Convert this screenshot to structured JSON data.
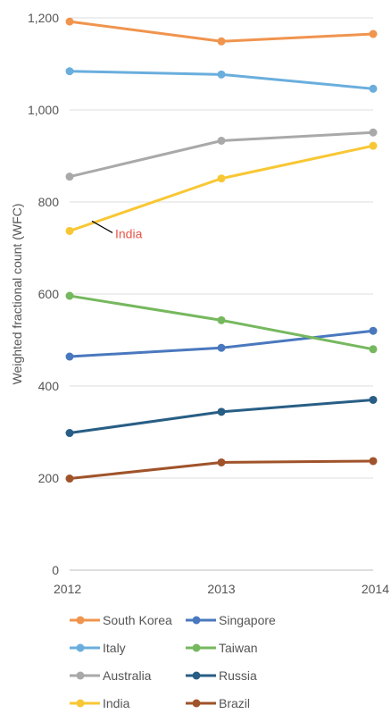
{
  "chart_data": {
    "type": "line",
    "title": "",
    "xlabel": "",
    "ylabel": "Weighted fractional count (WFC)",
    "x": [
      "2012",
      "2013",
      "2014"
    ],
    "ylim": [
      0,
      1200
    ],
    "yticks": [
      "0",
      "200",
      "400",
      "600",
      "800",
      "1,000",
      "1,200"
    ],
    "yticks_values": [
      0,
      200,
      400,
      600,
      800,
      1000,
      1200
    ],
    "grid": true,
    "legend_placement": "bottom",
    "series": [
      {
        "name": "South Korea",
        "color": "#F0944E",
        "values": [
          1192,
          1149,
          1165
        ]
      },
      {
        "name": "Italy",
        "color": "#6AAEDD",
        "values": [
          1084,
          1077,
          1046
        ]
      },
      {
        "name": "Australia",
        "color": "#A9A9A9",
        "values": [
          855,
          933,
          951
        ]
      },
      {
        "name": "India",
        "color": "#F8C734",
        "values": [
          737,
          851,
          922
        ]
      },
      {
        "name": "Singapore",
        "color": "#4A78BE",
        "values": [
          464,
          483,
          520
        ]
      },
      {
        "name": "Taiwan",
        "color": "#76B85E",
        "values": [
          596,
          543,
          480
        ]
      },
      {
        "name": "Russia",
        "color": "#285E85",
        "values": [
          298,
          344,
          370
        ]
      },
      {
        "name": "Brazil",
        "color": "#A0532A",
        "values": [
          199,
          234,
          237
        ]
      }
    ],
    "annotation": {
      "text": "India",
      "color": "#E8544A",
      "series": "India",
      "x": "2012"
    }
  }
}
